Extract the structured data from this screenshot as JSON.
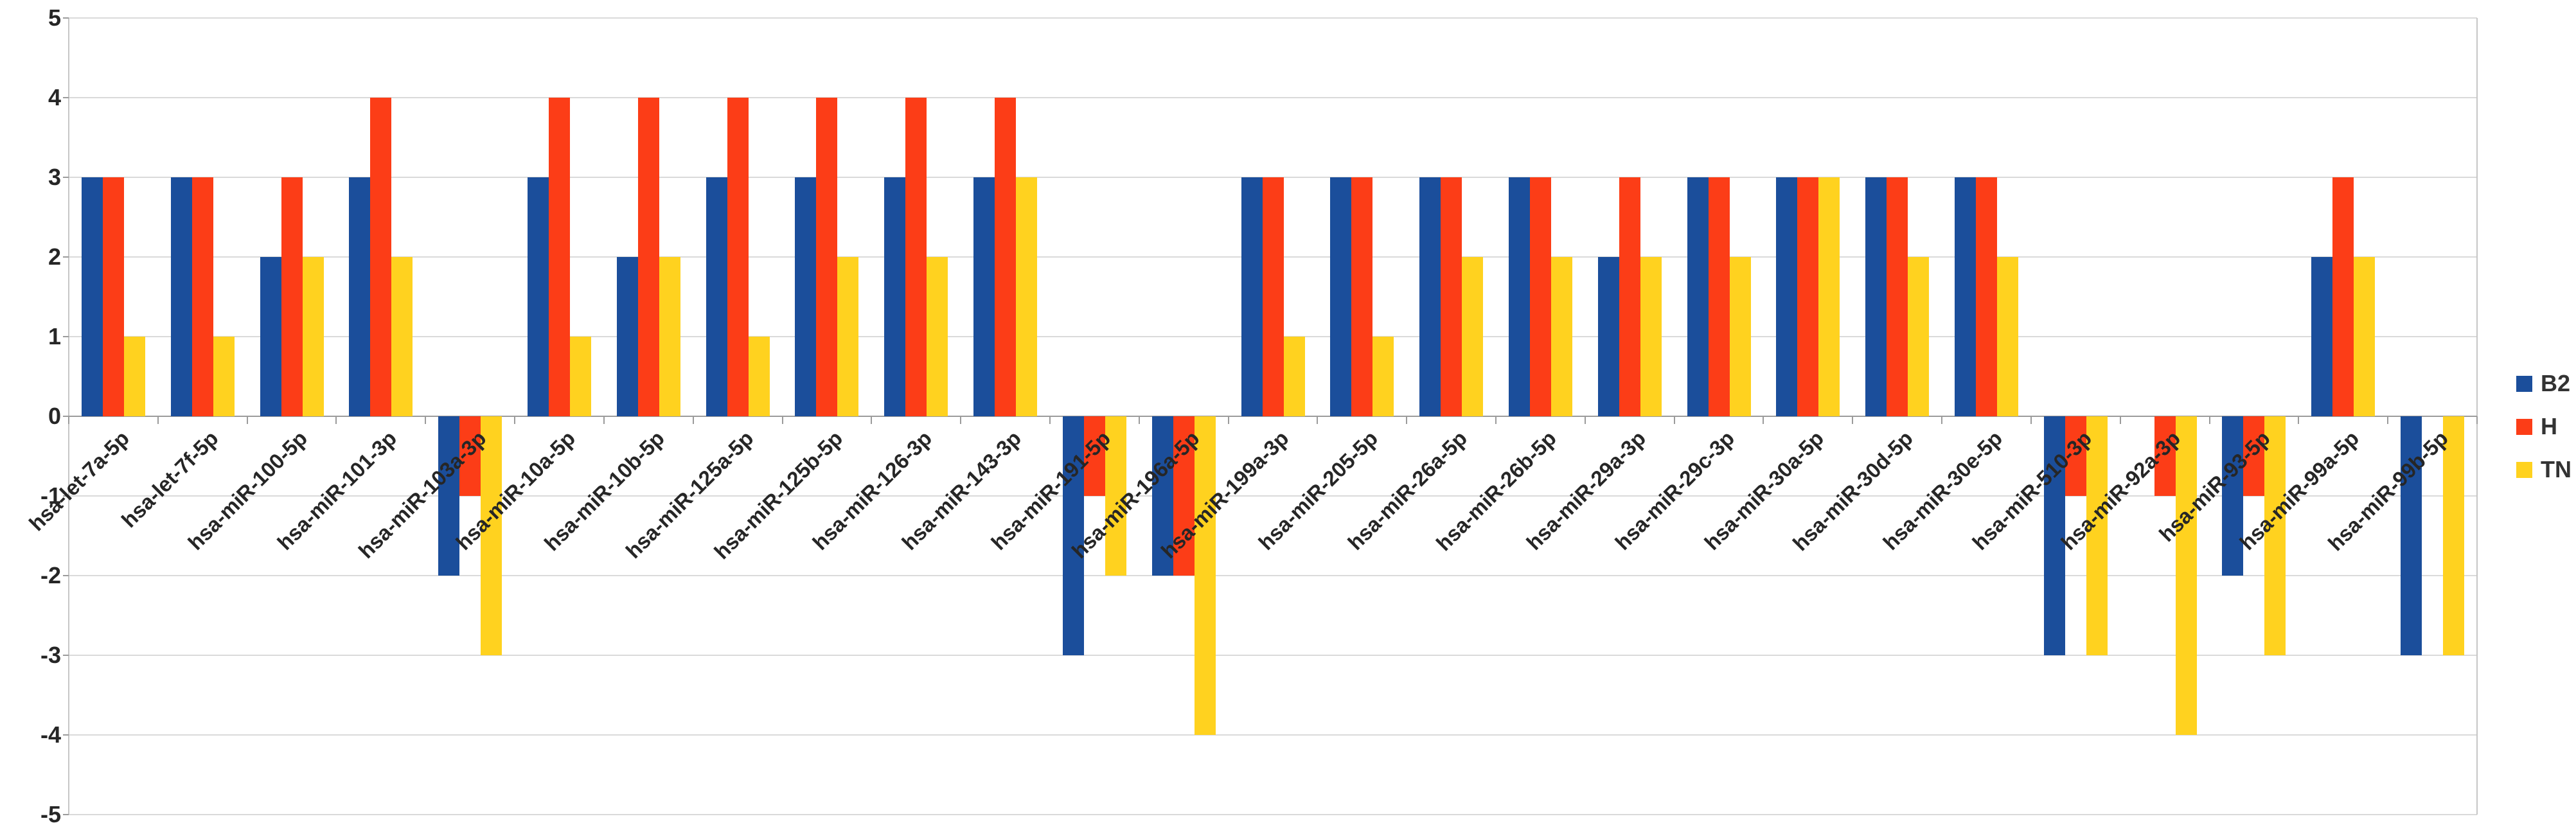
{
  "chart_data": {
    "type": "bar",
    "title": "",
    "xlabel": "",
    "ylabel": "",
    "grid": true,
    "categories": [
      "hsa-let-7a-5p",
      "hsa-let-7f-5p",
      "hsa-miR-100-5p",
      "hsa-miR-101-3p",
      "hsa-miR-103a-3p",
      "hsa-miR-10a-5p",
      "hsa-miR-10b-5p",
      "hsa-miR-125a-5p",
      "hsa-miR-125b-5p",
      "hsa-miR-126-3p",
      "hsa-miR-143-3p",
      "hsa-miR-191-5p",
      "hsa-miR-196a-5p",
      "hsa-miR-199a-3p",
      "hsa-miR-205-5p",
      "hsa-miR-26a-5p",
      "hsa-miR-26b-5p",
      "hsa-miR-29a-3p",
      "hsa-miR-29c-3p",
      "hsa-miR-30a-5p",
      "hsa-miR-30d-5p",
      "hsa-miR-30e-5p",
      "hsa-miR-510-3p",
      "hsa-miR-92a-3p",
      "hsa-miR-93-5p",
      "hsa-miR-99a-5p",
      "hsa-miR-99b-5p"
    ],
    "series": [
      {
        "name": "B2",
        "color": "#1B4E9B",
        "values": [
          3,
          3,
          2,
          3,
          -2,
          3,
          2,
          3,
          3,
          3,
          3,
          -3,
          -2,
          3,
          3,
          3,
          3,
          2,
          3,
          3,
          3,
          3,
          -3,
          0,
          -2,
          2,
          -3
        ]
      },
      {
        "name": "H",
        "color": "#FC3D17",
        "values": [
          3,
          3,
          3,
          4,
          -1,
          4,
          4,
          4,
          4,
          4,
          4,
          -1,
          -2,
          3,
          3,
          3,
          3,
          3,
          3,
          3,
          3,
          3,
          -1,
          -1,
          -1,
          3,
          0
        ]
      },
      {
        "name": "TN",
        "color": "#FFD21F",
        "values": [
          1,
          1,
          2,
          2,
          -3,
          1,
          2,
          1,
          2,
          2,
          3,
          -2,
          -4,
          1,
          1,
          2,
          2,
          2,
          2,
          3,
          2,
          2,
          -3,
          -4,
          -3,
          2,
          -3
        ]
      }
    ],
    "y_axis": {
      "min": -5,
      "max": 5,
      "step": 1,
      "tick_labels": [
        "5",
        "4",
        "3",
        "2",
        "1",
        "0",
        "-1",
        "-2",
        "-3",
        "-4",
        "-5"
      ]
    },
    "legend": {
      "position": "right",
      "entries": [
        "B2",
        "H",
        "TN"
      ]
    }
  },
  "colors": {
    "background": "#ffffff",
    "gridline": "#dadada",
    "zero_axis": "#9b9b9b",
    "plot_border": "#c6c6c6",
    "text": "#262626"
  }
}
